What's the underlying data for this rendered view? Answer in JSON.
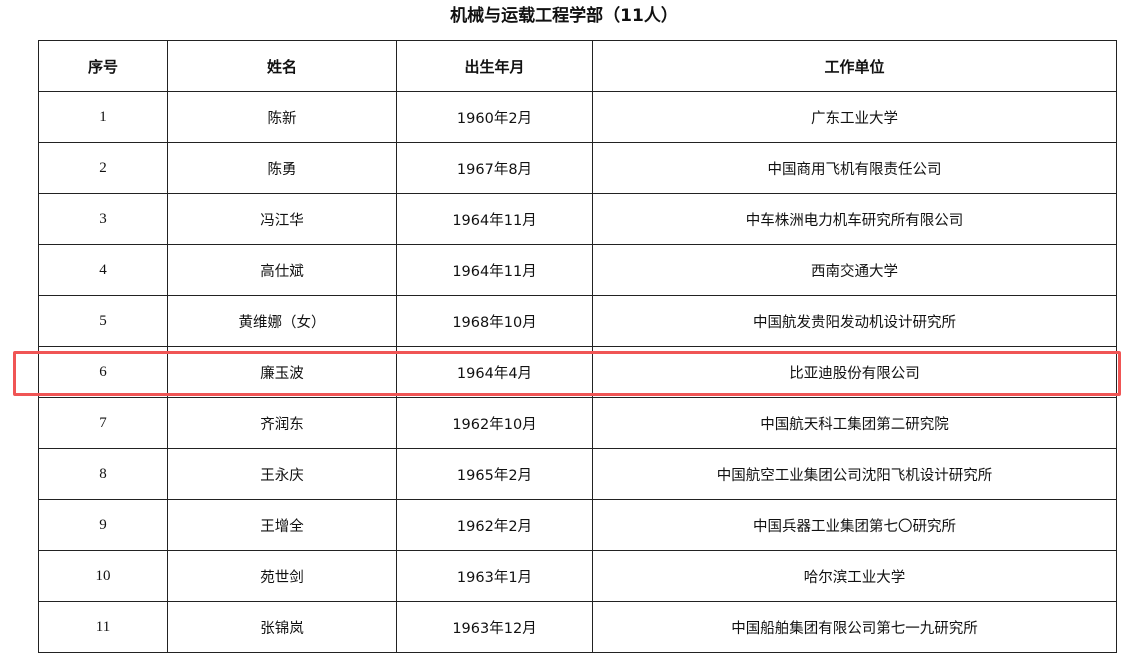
{
  "title": "机械与运载工程学部（11人）",
  "headers": [
    "序号",
    "姓名",
    "出生年月",
    "工作单位"
  ],
  "rows": [
    [
      "1",
      "陈新",
      "1960年2月",
      "广东工业大学"
    ],
    [
      "2",
      "陈勇",
      "1967年8月",
      "中国商用飞机有限责任公司"
    ],
    [
      "3",
      "冯江华",
      "1964年11月",
      "中车株洲电力机车研究所有限公司"
    ],
    [
      "4",
      "高仕斌",
      "1964年11月",
      "西南交通大学"
    ],
    [
      "5",
      "黄维娜（女）",
      "1968年10月",
      "中国航发贵阳发动机设计研究所"
    ],
    [
      "6",
      "廉玉波",
      "1964年4月",
      "比亚迪股份有限公司"
    ],
    [
      "7",
      "齐润东",
      "1962年10月",
      "中国航天科工集团第二研究院"
    ],
    [
      "8",
      "王永庆",
      "1965年2月",
      "中国航空工业集团公司沈阳飞机设计研究所"
    ],
    [
      "9",
      "王增全",
      "1962年2月",
      "中国兵器工业集团第七〇研究所"
    ],
    [
      "10",
      "苑世剑",
      "1963年1月",
      "哈尔滨工业大学"
    ],
    [
      "11",
      "张锦岚",
      "1963年12月",
      "中国船舶集团有限公司第七一九研究所"
    ]
  ],
  "highlight": {
    "row_index": 5,
    "color": "#f05555"
  }
}
